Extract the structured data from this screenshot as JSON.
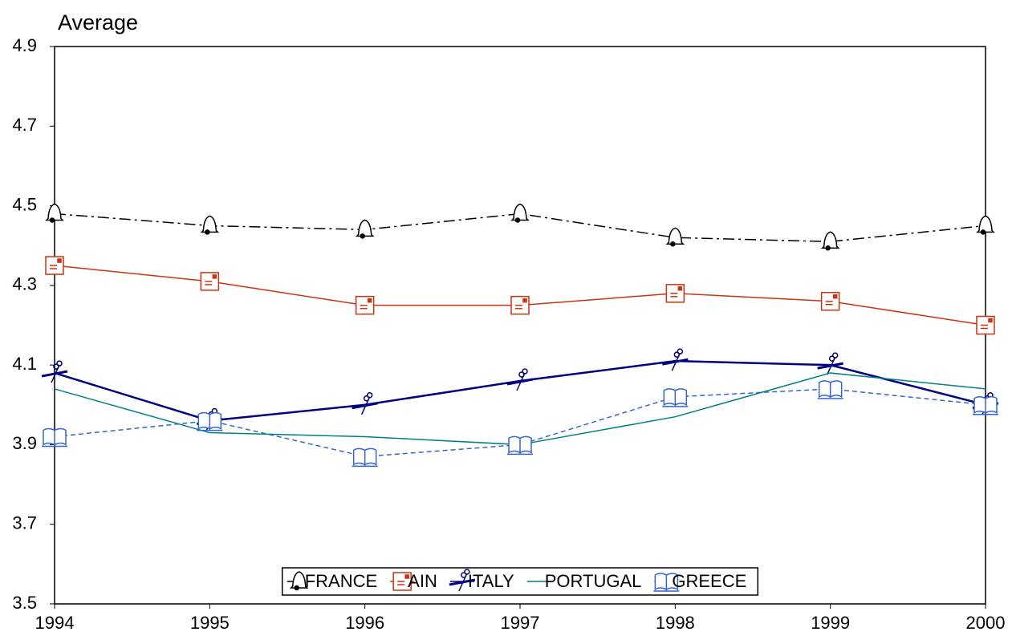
{
  "chart_data": {
    "type": "line",
    "y_label": "Average",
    "x": [
      1994,
      1995,
      1996,
      1997,
      1998,
      1999,
      2000
    ],
    "xlim": [
      1994,
      2000
    ],
    "xticks": [
      1994,
      1995,
      1996,
      1997,
      1998,
      1999,
      2000
    ],
    "ylim": [
      3.5,
      4.9
    ],
    "yticks": [
      3.5,
      3.7,
      3.9,
      4.1,
      4.3,
      4.5,
      4.7,
      4.9
    ],
    "legend": "bottom",
    "series": [
      {
        "name": "FRANCE",
        "color": "#000000",
        "dash": "14 5 3 5",
        "marker": "bell",
        "values": [
          4.48,
          4.45,
          4.44,
          4.48,
          4.42,
          4.41,
          4.45
        ]
      },
      {
        "name": "AIN",
        "color": "#cc3311",
        "marker": "envelope",
        "values": [
          4.35,
          4.31,
          4.25,
          4.25,
          4.28,
          4.26,
          4.2
        ]
      },
      {
        "name": "ITALY",
        "color": "#000080",
        "marker": "scissors",
        "values": [
          4.08,
          3.96,
          4.0,
          4.06,
          4.11,
          4.1,
          4.0
        ]
      },
      {
        "name": "PORTUGAL",
        "color": "#008080",
        "marker": "none",
        "values": [
          4.04,
          3.93,
          3.92,
          3.9,
          3.97,
          4.08,
          4.04
        ]
      },
      {
        "name": "GREECE",
        "color": "#3366cc",
        "dash": "6 4",
        "marker": "book",
        "values": [
          3.92,
          3.96,
          3.87,
          3.9,
          4.02,
          4.04,
          4.0
        ]
      }
    ]
  }
}
